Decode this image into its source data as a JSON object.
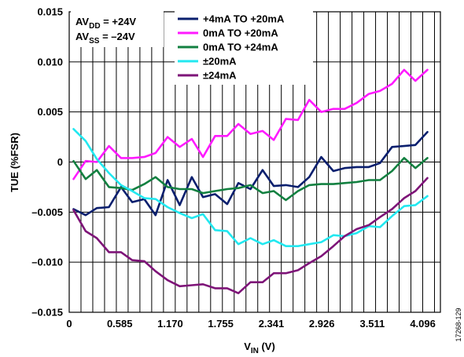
{
  "figure_id": "17268-129",
  "annotations": {
    "line1": {
      "pre": "AV",
      "sub": "DD",
      "post": " = +24V"
    },
    "line2": {
      "pre": "AV",
      "sub": "SS",
      "post": " = –24V"
    }
  },
  "chart_data": {
    "type": "line",
    "xlabel": {
      "main": "V",
      "sub": "IN",
      "unit": " (V)"
    },
    "ylabel": "TUE (%FSR)",
    "xlim": [
      0,
      4.3
    ],
    "ylim": [
      -0.015,
      0.015
    ],
    "x_ticks": [
      0,
      0.585,
      1.17,
      1.755,
      2.341,
      2.926,
      3.511,
      4.096
    ],
    "x_tick_labels": [
      "0",
      "0.585",
      "1.170",
      "1.755",
      "2.341",
      "2.926",
      "3.511",
      "4.096"
    ],
    "y_ticks": [
      -0.015,
      -0.01,
      -0.005,
      0,
      0.005,
      0.01,
      0.015
    ],
    "y_tick_labels": [
      "–0.015",
      "–0.010",
      "–0.005",
      "0",
      "0.005",
      "0.010",
      "0.015"
    ],
    "grid": {
      "vertical_step": 0.1365,
      "horizontal": true
    },
    "legend_position": "top-center",
    "x": [
      0.05,
      0.19,
      0.32,
      0.46,
      0.6,
      0.73,
      0.87,
      1.0,
      1.14,
      1.28,
      1.42,
      1.55,
      1.69,
      1.83,
      1.96,
      2.1,
      2.24,
      2.37,
      2.51,
      2.65,
      2.78,
      2.92,
      3.06,
      3.19,
      3.33,
      3.47,
      3.6,
      3.74,
      3.88,
      4.01,
      4.15
    ],
    "series": [
      {
        "name": "+4mA TO +20mA",
        "color": "#0a1f6e",
        "values": [
          -0.0047,
          -0.0053,
          -0.0046,
          -0.0045,
          -0.0025,
          -0.004,
          -0.0037,
          -0.0053,
          -0.0018,
          -0.0043,
          -0.0015,
          -0.0035,
          -0.0032,
          -0.0042,
          -0.0021,
          -0.0027,
          -0.0008,
          -0.0024,
          -0.0023,
          -0.0025,
          -0.0015,
          0.0005,
          -0.0009,
          -0.0006,
          -0.0005,
          -0.0005,
          -0.0001,
          0.0015,
          0.0016,
          0.0017,
          0.003
        ]
      },
      {
        "name": "0mA TO +20mA",
        "color": "#ff1aff",
        "values": [
          -0.0017,
          0.0001,
          0.0,
          0.0016,
          0.0004,
          0.0004,
          0.0005,
          0.0009,
          0.0025,
          0.0015,
          0.0023,
          0.0005,
          0.0026,
          0.0026,
          0.0038,
          0.0028,
          0.0031,
          0.0022,
          0.0043,
          0.0042,
          0.0062,
          0.005,
          0.0053,
          0.0053,
          0.0059,
          0.0068,
          0.0071,
          0.0078,
          0.0092,
          0.0081,
          0.0092
        ]
      },
      {
        "name": "0mA TO +24mA",
        "color": "#128040",
        "values": [
          0.0001,
          -0.0017,
          -0.0008,
          -0.0025,
          -0.0026,
          -0.0028,
          -0.0022,
          -0.0015,
          -0.0025,
          -0.0027,
          -0.0027,
          -0.0031,
          -0.0029,
          -0.0027,
          -0.0026,
          -0.0023,
          -0.0031,
          -0.0029,
          -0.0038,
          -0.0029,
          -0.0023,
          -0.0022,
          -0.0022,
          -0.0021,
          -0.002,
          -0.0018,
          -0.0018,
          -0.0009,
          0.0004,
          -0.0006,
          0.0004
        ]
      },
      {
        "name": "±20mA",
        "color": "#22e8f0",
        "values": [
          0.0033,
          0.0021,
          0.0003,
          -0.0011,
          -0.0023,
          -0.0029,
          -0.0036,
          -0.0037,
          -0.0045,
          -0.0051,
          -0.0056,
          -0.0052,
          -0.0068,
          -0.0069,
          -0.0082,
          -0.0076,
          -0.0082,
          -0.0078,
          -0.0084,
          -0.0084,
          -0.0082,
          -0.008,
          -0.0073,
          -0.0074,
          -0.0071,
          -0.0064,
          -0.0065,
          -0.0054,
          -0.0044,
          -0.0043,
          -0.0034
        ]
      },
      {
        "name": "±24mA",
        "color": "#7e1478",
        "values": [
          -0.0048,
          -0.0069,
          -0.0076,
          -0.009,
          -0.009,
          -0.0098,
          -0.0099,
          -0.0109,
          -0.0118,
          -0.0124,
          -0.0123,
          -0.0122,
          -0.0126,
          -0.0126,
          -0.0131,
          -0.012,
          -0.012,
          -0.0111,
          -0.0111,
          -0.0108,
          -0.0101,
          -0.0094,
          -0.0084,
          -0.0074,
          -0.0067,
          -0.0063,
          -0.0055,
          -0.0047,
          -0.0036,
          -0.0029,
          -0.0016
        ]
      }
    ]
  }
}
